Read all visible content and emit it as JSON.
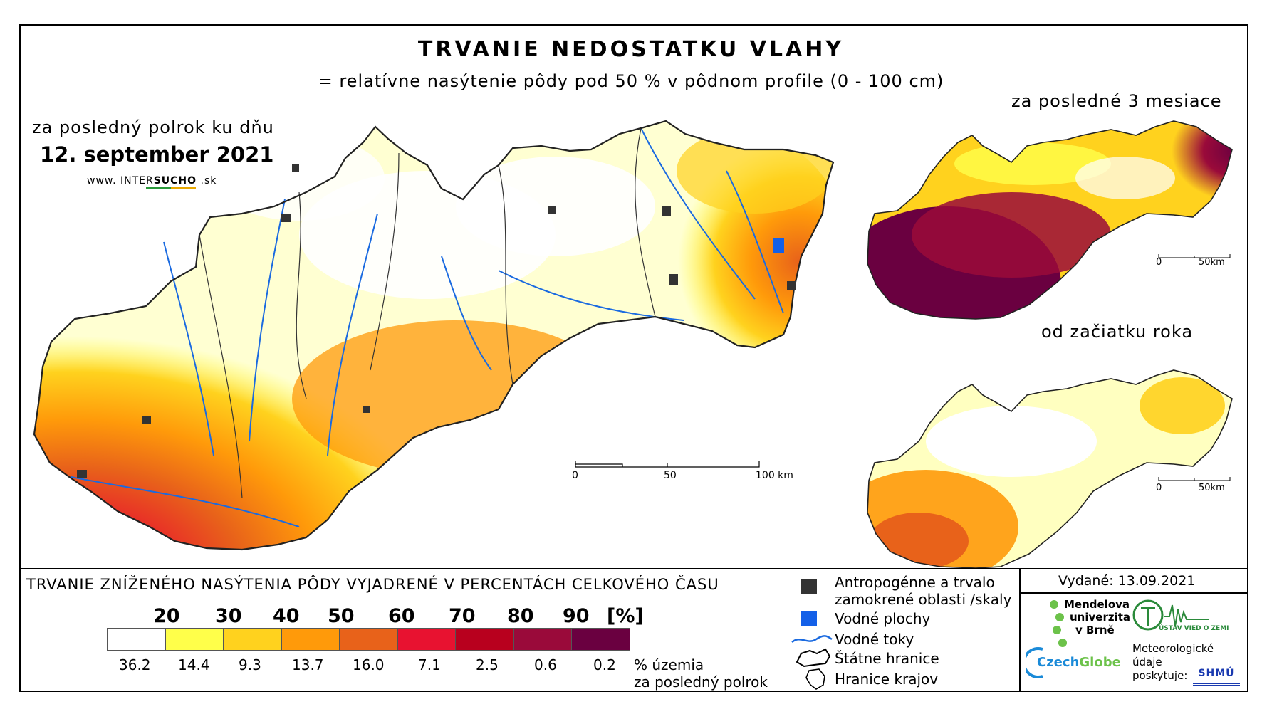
{
  "header": {
    "title": "TRVANIE NEDOSTATKU VLAHY",
    "subtitle": "= relatívne nasýtenie pôdy pod 50 % v pôdnom profile (0 - 100 cm)",
    "period_label": "za posledný polrok ku dňu",
    "date": "12. september 2021",
    "site_prefix": "www. INTER",
    "site_brand": "SUCHO",
    "site_suffix": " .sk"
  },
  "main_map": {
    "scale": {
      "labels": [
        "0",
        "50",
        "100 km"
      ]
    }
  },
  "insets": [
    {
      "title": "za posledné 3 mesiace",
      "scale": [
        "0",
        "50km"
      ]
    },
    {
      "title": "od začiatku roka",
      "scale": [
        "0",
        "50km"
      ]
    }
  ],
  "legend": {
    "title": "TRVANIE ZNÍŽENÉHO NASÝTENIA PÔDY VYJADRENÉ V PERCENTÁCH CELKOVÉHO ČASU",
    "thresholds": [
      "20",
      "30",
      "40",
      "50",
      "60",
      "70",
      "80",
      "90"
    ],
    "unit": "[%]",
    "classes": [
      {
        "color": "#ffffff",
        "share": "36.2"
      },
      {
        "color": "#ffff4a",
        "share": "14.4"
      },
      {
        "color": "#ffd21e",
        "share": "9.3"
      },
      {
        "color": "#ff9a0a",
        "share": "13.7"
      },
      {
        "color": "#e8621a",
        "share": "16.0"
      },
      {
        "color": "#e81230",
        "share": "7.1"
      },
      {
        "color": "#b8001e",
        "share": "2.5"
      },
      {
        "color": "#9a0a3a",
        "share": "0.6"
      },
      {
        "color": "#6a0040",
        "share": "0.2"
      }
    ],
    "share_unit_line1": "% územia",
    "share_unit_line2": "za posledný polrok"
  },
  "map_key": {
    "items": [
      {
        "label_line1": "Antropogénne a trvalo",
        "label_line2": "zamokrené oblasti /skaly",
        "icon": "dark-square-icon",
        "color": "#333333"
      },
      {
        "label_line1": "Vodné plochy",
        "icon": "blue-square-icon",
        "color": "#1460e8"
      },
      {
        "label_line1": "Vodné toky",
        "icon": "river-line-icon",
        "color": "#1a6ae0"
      },
      {
        "label_line1": "Štátne hranice",
        "icon": "state-border-icon"
      },
      {
        "label_line1": "Hranice krajov",
        "icon": "region-border-icon"
      }
    ]
  },
  "footer": {
    "issued": "Vydané: 13.09.2021",
    "mendel": [
      "Mendelova",
      "univerzita",
      "v Brně"
    ],
    "czechglobe_a": "Czech",
    "czechglobe_b": "Globe",
    "uvz": "ÚSTAV VIED O ZEMI",
    "meteo": [
      "Meteorologické",
      "údaje",
      "poskytuje:"
    ],
    "shmu": "SHMÚ"
  }
}
